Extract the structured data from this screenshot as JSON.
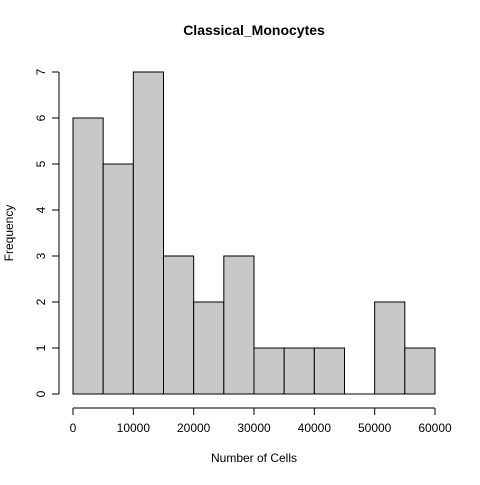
{
  "chart_data": {
    "type": "bar",
    "subtype": "histogram",
    "title": "Classical_Monocytes",
    "xlabel": "Number of Cells",
    "ylabel": "Frequency",
    "bins": [
      {
        "start": 0,
        "end": 5000,
        "count": 6
      },
      {
        "start": 5000,
        "end": 10000,
        "count": 5
      },
      {
        "start": 10000,
        "end": 15000,
        "count": 7
      },
      {
        "start": 15000,
        "end": 20000,
        "count": 3
      },
      {
        "start": 20000,
        "end": 25000,
        "count": 2
      },
      {
        "start": 25000,
        "end": 30000,
        "count": 3
      },
      {
        "start": 30000,
        "end": 35000,
        "count": 1
      },
      {
        "start": 35000,
        "end": 40000,
        "count": 1
      },
      {
        "start": 40000,
        "end": 45000,
        "count": 1
      },
      {
        "start": 45000,
        "end": 50000,
        "count": 0
      },
      {
        "start": 50000,
        "end": 55000,
        "count": 2
      },
      {
        "start": 55000,
        "end": 60000,
        "count": 1
      }
    ],
    "xlim": [
      0,
      60000
    ],
    "ylim": [
      0,
      7
    ],
    "xticks": [
      0,
      10000,
      20000,
      30000,
      40000,
      50000,
      60000
    ],
    "xtick_labels": [
      "0",
      "10000",
      "20000",
      "30000",
      "40000",
      "50000",
      "60000"
    ],
    "yticks": [
      0,
      1,
      2,
      3,
      4,
      5,
      6,
      7
    ],
    "ytick_labels": [
      "0",
      "1",
      "2",
      "3",
      "4",
      "5",
      "6",
      "7"
    ],
    "bar_color": "#c8c8c8",
    "edge_color": "#000000",
    "grid": false,
    "legend": "none"
  }
}
